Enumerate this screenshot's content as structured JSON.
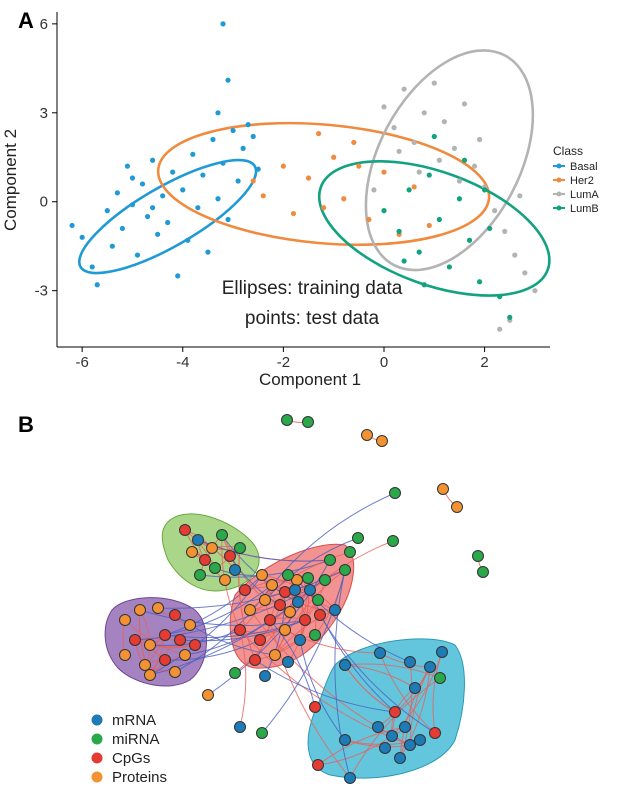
{
  "panels": {
    "a": "A",
    "b": "B"
  },
  "chart_data": [
    {
      "type": "scatter",
      "panel": "A",
      "xlabel": "Component 1",
      "ylabel": "Component 2",
      "xlim": [
        -6.5,
        3.3
      ],
      "ylim": [
        -4.9,
        6.4
      ],
      "xticks": [
        -6,
        -4,
        -2,
        0,
        2
      ],
      "yticks": [
        -3,
        0,
        3,
        6
      ],
      "grid": false,
      "legend_title": "Class",
      "legend_position": "right",
      "annotations": [
        "Ellipses: training data",
        "points: test data"
      ],
      "series": [
        {
          "name": "Basal",
          "color": "#1f9ad6",
          "ellipse": {
            "cx": -4.3,
            "cy": -0.5,
            "rx": 2.0,
            "ry": 1.0,
            "angle_deg": 30
          },
          "points": [
            [
              -6.2,
              -0.8
            ],
            [
              -6.0,
              -1.2
            ],
            [
              -5.8,
              -2.2
            ],
            [
              -5.7,
              -2.8
            ],
            [
              -5.5,
              -0.3
            ],
            [
              -5.4,
              -1.5
            ],
            [
              -5.3,
              0.3
            ],
            [
              -5.2,
              -0.9
            ],
            [
              -5.1,
              1.2
            ],
            [
              -5.0,
              -0.1
            ],
            [
              -4.9,
              -1.8
            ],
            [
              -4.8,
              0.6
            ],
            [
              -4.7,
              -0.5
            ],
            [
              -4.6,
              1.4
            ],
            [
              -4.5,
              -1.1
            ],
            [
              -4.4,
              0.2
            ],
            [
              -4.3,
              -0.7
            ],
            [
              -4.2,
              1.0
            ],
            [
              -4.1,
              -2.5
            ],
            [
              -4.0,
              0.4
            ],
            [
              -3.9,
              -1.3
            ],
            [
              -3.8,
              1.6
            ],
            [
              -3.7,
              -0.2
            ],
            [
              -3.6,
              0.9
            ],
            [
              -3.5,
              -1.7
            ],
            [
              -3.4,
              2.1
            ],
            [
              -3.3,
              0.1
            ],
            [
              -3.2,
              1.3
            ],
            [
              -3.1,
              -0.6
            ],
            [
              -3.0,
              2.4
            ],
            [
              -2.9,
              0.7
            ],
            [
              -2.8,
              1.8
            ],
            [
              -2.6,
              2.2
            ],
            [
              -2.5,
              1.1
            ],
            [
              -3.3,
              3.0
            ],
            [
              -3.1,
              4.1
            ],
            [
              -3.2,
              6.0
            ],
            [
              -2.7,
              2.6
            ],
            [
              -4.6,
              -0.2
            ],
            [
              -5.0,
              0.8
            ]
          ]
        },
        {
          "name": "Her2",
          "color": "#f08a3e",
          "ellipse": {
            "cx": -1.2,
            "cy": 0.6,
            "rx": 3.3,
            "ry": 2.0,
            "angle_deg": -5
          },
          "points": [
            [
              -2.4,
              0.2
            ],
            [
              -2.0,
              1.2
            ],
            [
              -1.8,
              -0.4
            ],
            [
              -1.5,
              0.8
            ],
            [
              -1.2,
              -0.2
            ],
            [
              -1.0,
              1.5
            ],
            [
              -0.8,
              0.1
            ],
            [
              -0.6,
              2.0
            ],
            [
              -0.3,
              -0.6
            ],
            [
              0.0,
              1.0
            ],
            [
              0.3,
              -1.1
            ],
            [
              0.6,
              0.5
            ],
            [
              0.9,
              -0.8
            ],
            [
              -2.6,
              0.7
            ],
            [
              -1.3,
              2.3
            ],
            [
              -0.5,
              1.2
            ]
          ]
        },
        {
          "name": "LumA",
          "color": "#b3b3b3",
          "ellipse": {
            "cx": 1.3,
            "cy": 1.4,
            "rx": 1.4,
            "ry": 4.0,
            "angle_deg": -28
          },
          "points": [
            [
              0.0,
              3.2
            ],
            [
              0.2,
              2.5
            ],
            [
              0.4,
              3.8
            ],
            [
              0.6,
              2.0
            ],
            [
              0.8,
              3.0
            ],
            [
              1.0,
              4.0
            ],
            [
              1.2,
              2.7
            ],
            [
              1.4,
              1.8
            ],
            [
              1.6,
              3.3
            ],
            [
              1.8,
              1.2
            ],
            [
              2.0,
              0.5
            ],
            [
              2.2,
              -0.3
            ],
            [
              2.4,
              -1.0
            ],
            [
              2.6,
              -1.8
            ],
            [
              2.8,
              -2.4
            ],
            [
              3.0,
              -3.0
            ],
            [
              2.5,
              -4.0
            ],
            [
              2.3,
              -4.3
            ],
            [
              1.5,
              0.7
            ],
            [
              1.1,
              1.4
            ],
            [
              0.7,
              1.0
            ],
            [
              0.3,
              1.7
            ],
            [
              -0.2,
              0.4
            ],
            [
              1.9,
              2.1
            ],
            [
              2.7,
              0.2
            ]
          ]
        },
        {
          "name": "LumB",
          "color": "#11a37f",
          "ellipse": {
            "cx": 1.0,
            "cy": -0.9,
            "rx": 2.4,
            "ry": 1.9,
            "angle_deg": -20
          },
          "points": [
            [
              0.0,
              -0.3
            ],
            [
              0.3,
              -1.0
            ],
            [
              0.5,
              0.4
            ],
            [
              0.7,
              -1.7
            ],
            [
              0.9,
              0.9
            ],
            [
              1.1,
              -0.6
            ],
            [
              1.3,
              -2.2
            ],
            [
              1.5,
              0.1
            ],
            [
              1.7,
              -1.3
            ],
            [
              1.9,
              -2.7
            ],
            [
              2.1,
              -0.9
            ],
            [
              2.3,
              -3.2
            ],
            [
              2.5,
              -3.9
            ],
            [
              1.0,
              2.2
            ],
            [
              0.8,
              -2.8
            ],
            [
              1.6,
              1.4
            ],
            [
              2.0,
              0.4
            ],
            [
              0.4,
              -2.0
            ]
          ]
        }
      ]
    },
    {
      "type": "network",
      "panel": "B",
      "legend_position": "bottom-left",
      "node_types": [
        {
          "name": "mRNA",
          "color": "#1f7bb6"
        },
        {
          "name": "miRNA",
          "color": "#2aa84a"
        },
        {
          "name": "CpGs",
          "color": "#e43b33"
        },
        {
          "name": "Proteins",
          "color": "#f39232"
        }
      ],
      "clusters": [
        {
          "color": "#8dc861"
        },
        {
          "color": "#ef6f6c"
        },
        {
          "color": "#8f63b0"
        },
        {
          "color": "#49bcd6"
        }
      ]
    }
  ]
}
